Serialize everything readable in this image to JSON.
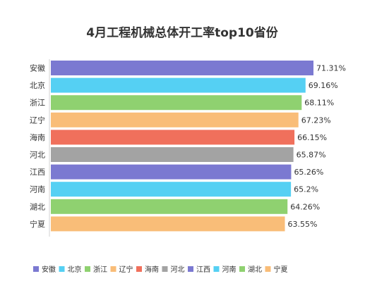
{
  "chart_data": {
    "type": "bar",
    "orientation": "horizontal",
    "title": "4月工程机械总体开工率top10省份",
    "xlabel": "",
    "ylabel": "",
    "categories": [
      "安徽",
      "北京",
      "浙江",
      "辽宁",
      "海南",
      "河北",
      "江西",
      "河南",
      "湖北",
      "宁夏"
    ],
    "values": [
      71.31,
      69.16,
      68.11,
      67.23,
      66.15,
      65.87,
      65.26,
      65.2,
      64.26,
      63.55
    ],
    "value_labels": [
      "71.31%",
      "69.16%",
      "68.11%",
      "67.23%",
      "66.15%",
      "65.87%",
      "65.26%",
      "65.2%",
      "64.26%",
      "63.55%"
    ],
    "colors": [
      "#7b79d1",
      "#55d0f3",
      "#8fd170",
      "#f9bd78",
      "#f0705c",
      "#a3a3a3",
      "#7b79d1",
      "#55d0f3",
      "#8fd170",
      "#f9bd78"
    ],
    "xlim": [
      0,
      71.31
    ],
    "grid": false,
    "legend": {
      "position": "bottom",
      "entries": [
        "安徽",
        "北京",
        "浙江",
        "辽宁",
        "海南",
        "河北",
        "江西",
        "河南",
        "湖北",
        "宁夏"
      ]
    }
  }
}
